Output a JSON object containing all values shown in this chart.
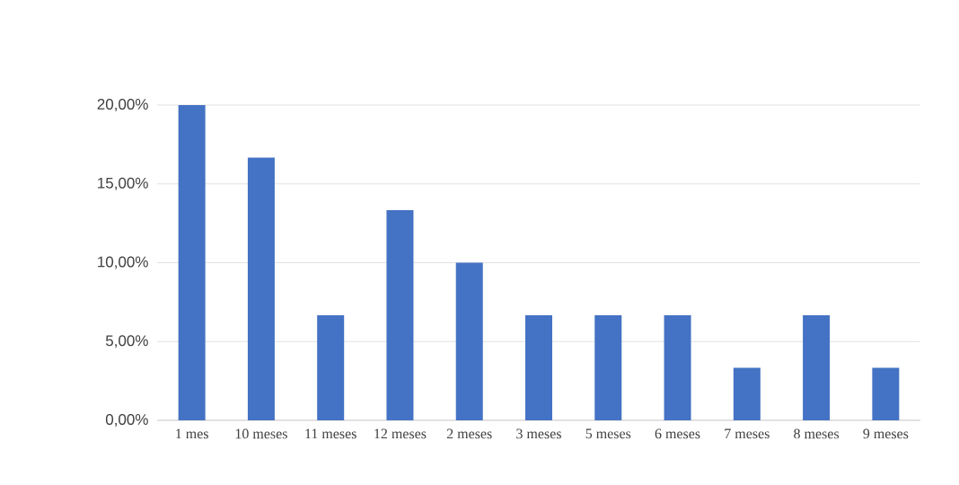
{
  "chart_data": {
    "type": "bar",
    "categories": [
      "1 mes",
      "10 meses",
      "11 meses",
      "12 meses",
      "2 meses",
      "3 meses",
      "5 meses",
      "6 meses",
      "7 meses",
      "8 meses",
      "9 meses"
    ],
    "values": [
      20,
      16.67,
      6.67,
      13.33,
      10,
      6.67,
      6.67,
      6.67,
      3.33,
      6.67,
      3.33
    ],
    "color": "#4472c4",
    "ylim": [
      0,
      20
    ],
    "yticks": [
      {
        "value": 0,
        "label": "0,00%"
      },
      {
        "value": 5,
        "label": "5,00%"
      },
      {
        "value": 10,
        "label": "10,00%"
      },
      {
        "value": 15,
        "label": "15,00%"
      },
      {
        "value": 20,
        "label": "20,00%"
      }
    ],
    "grid": "y"
  }
}
